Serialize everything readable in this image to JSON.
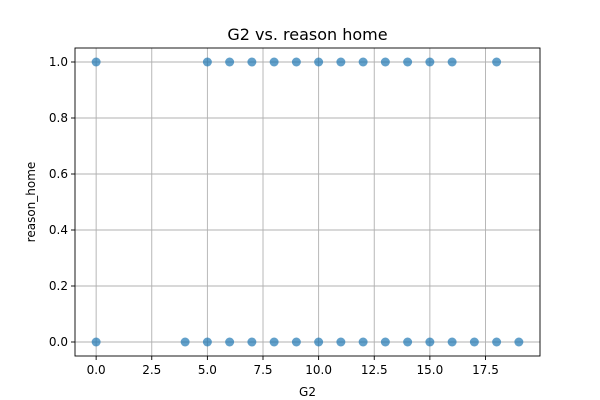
{
  "chart_data": {
    "type": "scatter",
    "title": "G2 vs. reason home",
    "xlabel": "G2",
    "ylabel": "reason_home",
    "xlim": [
      -0.95,
      19.95
    ],
    "ylim": [
      -0.05,
      1.05
    ],
    "grid": true,
    "x_ticks": [
      0.0,
      2.5,
      5.0,
      7.5,
      10.0,
      12.5,
      15.0,
      17.5
    ],
    "x_tick_labels": [
      "0.0",
      "2.5",
      "5.0",
      "7.5",
      "10.0",
      "12.5",
      "15.0",
      "17.5"
    ],
    "y_ticks": [
      0.0,
      0.2,
      0.4,
      0.6,
      0.8,
      1.0
    ],
    "y_tick_labels": [
      "0.0",
      "0.2",
      "0.4",
      "0.6",
      "0.8",
      "1.0"
    ],
    "series": [
      {
        "color": "#1f77b4",
        "points": [
          [
            0,
            1
          ],
          [
            5,
            1
          ],
          [
            6,
            1
          ],
          [
            7,
            1
          ],
          [
            8,
            1
          ],
          [
            9,
            1
          ],
          [
            10,
            1
          ],
          [
            11,
            1
          ],
          [
            12,
            1
          ],
          [
            13,
            1
          ],
          [
            14,
            1
          ],
          [
            15,
            1
          ],
          [
            16,
            1
          ],
          [
            18,
            1
          ],
          [
            0,
            0
          ],
          [
            4,
            0
          ],
          [
            5,
            0
          ],
          [
            6,
            0
          ],
          [
            7,
            0
          ],
          [
            8,
            0
          ],
          [
            9,
            0
          ],
          [
            10,
            0
          ],
          [
            11,
            0
          ],
          [
            12,
            0
          ],
          [
            13,
            0
          ],
          [
            14,
            0
          ],
          [
            15,
            0
          ],
          [
            16,
            0
          ],
          [
            17,
            0
          ],
          [
            18,
            0
          ],
          [
            19,
            0
          ]
        ]
      }
    ]
  }
}
